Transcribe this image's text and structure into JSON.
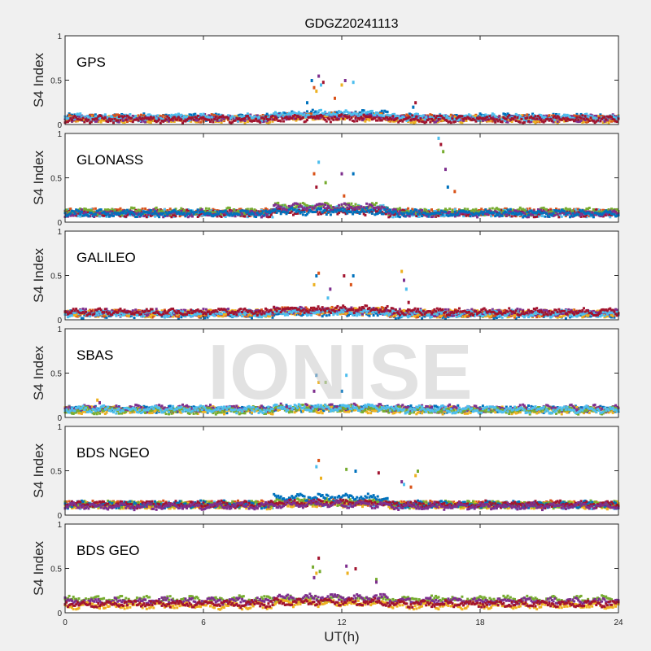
{
  "chart_data": {
    "type": "scatter",
    "title": "GDGZ20241113",
    "xlabel": "UT(h)",
    "ylabel": "S4 Index",
    "xlim": [
      0,
      24
    ],
    "ylim": [
      0,
      1
    ],
    "xticks": [
      "0",
      "6",
      "12",
      "18",
      "24"
    ],
    "yticks": [
      "0",
      "0.5",
      "1"
    ],
    "watermark": "IONISE",
    "colors": [
      "#0072BD",
      "#D95319",
      "#EDB120",
      "#7E2F8E",
      "#77AC30",
      "#4DBEEE",
      "#A2142F"
    ],
    "panels": [
      {
        "label": "GPS",
        "series": [
          {
            "color": 0,
            "baseline": 0.08,
            "enhanced": 0.12
          },
          {
            "color": 1,
            "baseline": 0.07,
            "enhanced": 0.09
          },
          {
            "color": 2,
            "baseline": 0.06,
            "enhanced": 0.08
          },
          {
            "color": 3,
            "baseline": 0.07,
            "enhanced": 0.09
          },
          {
            "color": 5,
            "baseline": 0.08,
            "enhanced": 0.12
          },
          {
            "color": 6,
            "baseline": 0.06,
            "enhanced": 0.07
          }
        ],
        "spikes": [
          [
            10.7,
            0.5
          ],
          [
            10.8,
            0.42
          ],
          [
            10.9,
            0.38
          ],
          [
            11.0,
            0.55
          ],
          [
            11.1,
            0.45
          ],
          [
            11.2,
            0.48
          ],
          [
            10.5,
            0.25
          ],
          [
            11.7,
            0.3
          ],
          [
            12.0,
            0.45
          ],
          [
            12.15,
            0.5
          ],
          [
            12.5,
            0.48
          ],
          [
            15.2,
            0.25
          ],
          [
            15.1,
            0.2
          ]
        ]
      },
      {
        "label": "GLONASS",
        "series": [
          {
            "color": 1,
            "baseline": 0.11,
            "enhanced": 0.14
          },
          {
            "color": 5,
            "baseline": 0.1,
            "enhanced": 0.15
          },
          {
            "color": 6,
            "baseline": 0.1,
            "enhanced": 0.12
          },
          {
            "color": 4,
            "baseline": 0.12,
            "enhanced": 0.18
          },
          {
            "color": 3,
            "baseline": 0.1,
            "enhanced": 0.17
          },
          {
            "color": 0,
            "baseline": 0.1,
            "enhanced": 0.12
          }
        ],
        "spikes": [
          [
            10.8,
            0.55
          ],
          [
            11.0,
            0.68
          ],
          [
            10.9,
            0.4
          ],
          [
            11.3,
            0.45
          ],
          [
            12.0,
            0.55
          ],
          [
            12.5,
            0.55
          ],
          [
            12.1,
            0.3
          ],
          [
            16.2,
            0.95
          ],
          [
            16.3,
            0.88
          ],
          [
            16.4,
            0.8
          ],
          [
            16.5,
            0.6
          ],
          [
            16.6,
            0.4
          ],
          [
            16.9,
            0.35
          ]
        ]
      },
      {
        "label": "GALILEO",
        "series": [
          {
            "color": 0,
            "baseline": 0.06,
            "enhanced": 0.08
          },
          {
            "color": 1,
            "baseline": 0.07,
            "enhanced": 0.1
          },
          {
            "color": 2,
            "baseline": 0.07,
            "enhanced": 0.09
          },
          {
            "color": 3,
            "baseline": 0.08,
            "enhanced": 0.1
          },
          {
            "color": 5,
            "baseline": 0.07,
            "enhanced": 0.09
          },
          {
            "color": 6,
            "baseline": 0.09,
            "enhanced": 0.12
          }
        ],
        "spikes": [
          [
            10.9,
            0.5
          ],
          [
            11.0,
            0.53
          ],
          [
            10.8,
            0.4
          ],
          [
            11.5,
            0.35
          ],
          [
            11.4,
            0.25
          ],
          [
            12.1,
            0.5
          ],
          [
            12.5,
            0.5
          ],
          [
            12.4,
            0.4
          ],
          [
            14.6,
            0.55
          ],
          [
            14.7,
            0.45
          ],
          [
            14.8,
            0.35
          ],
          [
            14.9,
            0.2
          ]
        ]
      },
      {
        "label": "SBAS",
        "series": [
          {
            "color": 0,
            "baseline": 0.09,
            "enhanced": 0.1
          },
          {
            "color": 2,
            "baseline": 0.08,
            "enhanced": 0.09
          },
          {
            "color": 3,
            "baseline": 0.1,
            "enhanced": 0.11
          },
          {
            "color": 4,
            "baseline": 0.08,
            "enhanced": 0.1
          },
          {
            "color": 5,
            "baseline": 0.09,
            "enhanced": 0.11
          }
        ],
        "spikes": [
          [
            10.9,
            0.48
          ],
          [
            11.0,
            0.4
          ],
          [
            10.8,
            0.3
          ],
          [
            11.3,
            0.4
          ],
          [
            12.2,
            0.48
          ],
          [
            12.0,
            0.3
          ],
          [
            1.4,
            0.2
          ],
          [
            1.5,
            0.17
          ]
        ]
      },
      {
        "label": "BDS NGEO",
        "series": [
          {
            "color": 5,
            "baseline": 0.11,
            "enhanced": 0.14
          },
          {
            "color": 1,
            "baseline": 0.12,
            "enhanced": 0.14
          },
          {
            "color": 2,
            "baseline": 0.11,
            "enhanced": 0.13
          },
          {
            "color": 4,
            "baseline": 0.12,
            "enhanced": 0.15
          },
          {
            "color": 0,
            "baseline": 0.12,
            "enhanced": 0.2
          },
          {
            "color": 6,
            "baseline": 0.12,
            "enhanced": 0.14
          },
          {
            "color": 3,
            "baseline": 0.1,
            "enhanced": 0.12
          }
        ],
        "spikes": [
          [
            10.9,
            0.55
          ],
          [
            11.0,
            0.62
          ],
          [
            11.1,
            0.42
          ],
          [
            12.2,
            0.52
          ],
          [
            12.6,
            0.5
          ],
          [
            13.6,
            0.48
          ],
          [
            14.6,
            0.38
          ],
          [
            14.7,
            0.35
          ],
          [
            15.0,
            0.32
          ],
          [
            15.2,
            0.45
          ],
          [
            15.3,
            0.5
          ]
        ]
      },
      {
        "label": "BDS GEO",
        "series": [
          {
            "color": 4,
            "baseline": 0.15,
            "enhanced": 0.15
          },
          {
            "color": 3,
            "baseline": 0.13,
            "enhanced": 0.17
          },
          {
            "color": 2,
            "baseline": 0.08,
            "enhanced": 0.11
          },
          {
            "color": 6,
            "baseline": 0.1,
            "enhanced": 0.12
          }
        ],
        "spikes": [
          [
            10.75,
            0.52
          ],
          [
            10.8,
            0.4
          ],
          [
            10.9,
            0.45
          ],
          [
            11.0,
            0.62
          ],
          [
            11.05,
            0.47
          ],
          [
            12.2,
            0.53
          ],
          [
            12.25,
            0.45
          ],
          [
            12.6,
            0.5
          ],
          [
            13.5,
            0.38
          ],
          [
            13.5,
            0.35
          ]
        ]
      }
    ]
  }
}
